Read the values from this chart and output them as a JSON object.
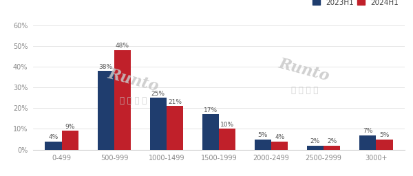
{
  "categories": [
    "0-499",
    "500-999",
    "1000-1499",
    "1500-1999",
    "2000-2499",
    "2500-2999",
    "3000+"
  ],
  "series": {
    "2023H1": [
      4,
      38,
      25,
      17,
      5,
      2,
      7
    ],
    "2024H1": [
      9,
      48,
      21,
      10,
      4,
      2,
      5
    ]
  },
  "colors": {
    "2023H1": "#1F3D6E",
    "2024H1": "#C0202A"
  },
  "ylim": [
    0,
    62
  ],
  "yticks": [
    0,
    10,
    20,
    30,
    40,
    50,
    60
  ],
  "ytick_labels": [
    "0%",
    "10%",
    "20%",
    "30%",
    "40%",
    "50%",
    "60%"
  ],
  "background_color": "#ffffff",
  "bar_width": 0.32,
  "label_fontsize": 6.5,
  "tick_fontsize": 7.0
}
